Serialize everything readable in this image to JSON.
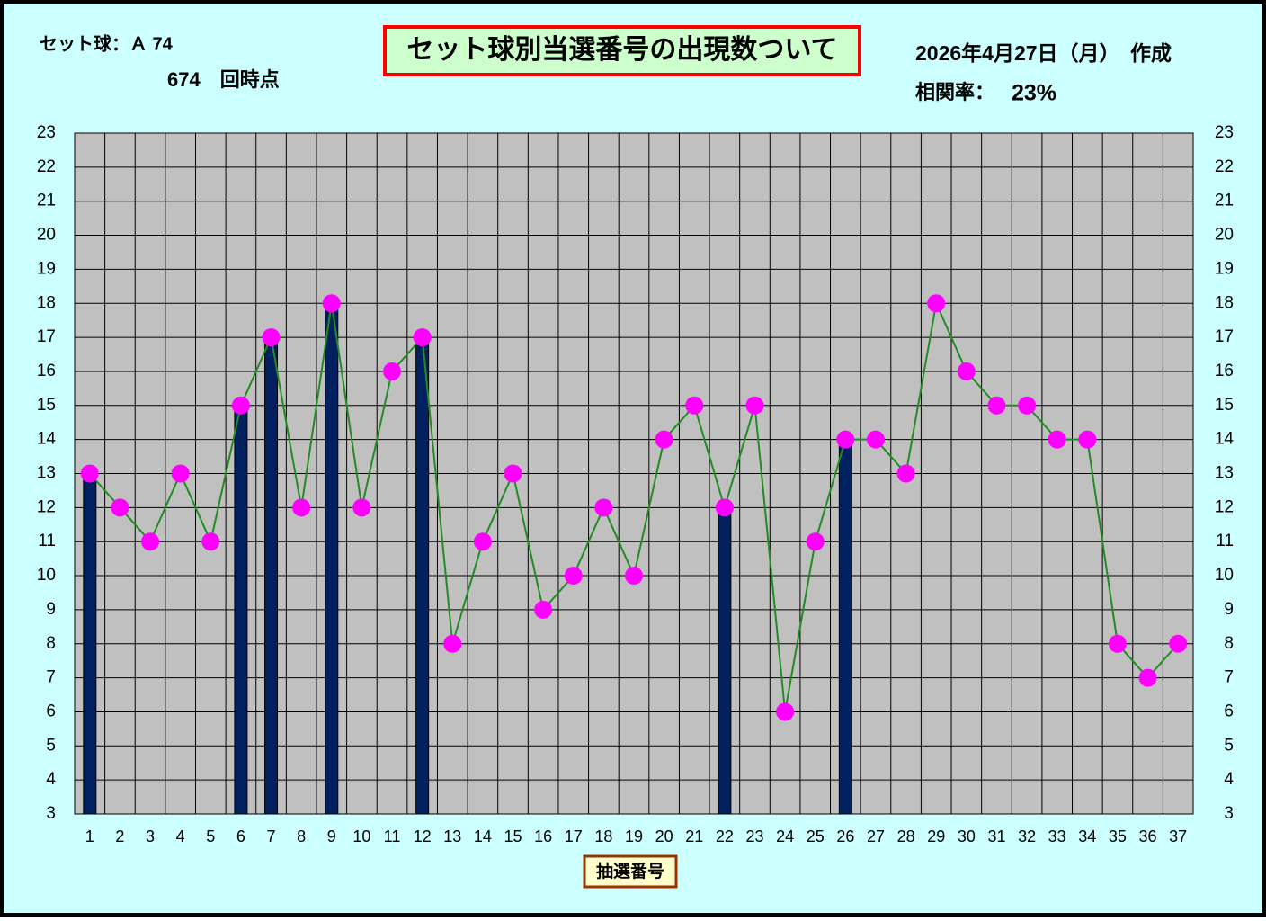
{
  "chart_data": {
    "type": "bar_line",
    "title": "セット球別当選番号の出現数ついて",
    "set_ball": "セット球：Ａ 74",
    "round": "674　回時点",
    "date": "2026年4月27日（月）　作成",
    "correlation_label": "相関率：",
    "correlation": "23%",
    "x_label": "抽選番号",
    "categories": [
      1,
      2,
      3,
      4,
      5,
      6,
      7,
      8,
      9,
      10,
      11,
      12,
      13,
      14,
      15,
      16,
      17,
      18,
      19,
      20,
      21,
      22,
      23,
      24,
      25,
      26,
      27,
      28,
      29,
      30,
      31,
      32,
      33,
      34,
      35,
      36,
      37
    ],
    "series": [
      {
        "type": "bar",
        "color": "#002060",
        "values": [
          13,
          null,
          null,
          null,
          null,
          15,
          17,
          null,
          18,
          null,
          null,
          17,
          null,
          null,
          null,
          null,
          null,
          null,
          null,
          null,
          null,
          12,
          null,
          null,
          null,
          14,
          null,
          null,
          null,
          null,
          null,
          null,
          null,
          null,
          null,
          null,
          null
        ]
      },
      {
        "type": "line",
        "color": "#228b22",
        "marker_color": "#ff00ff",
        "values": [
          13,
          12,
          11,
          13,
          11,
          15,
          17,
          12,
          18,
          12,
          16,
          17,
          8,
          11,
          13,
          9,
          10,
          12,
          10,
          14,
          15,
          12,
          15,
          6,
          11,
          14,
          14,
          13,
          18,
          16,
          15,
          15,
          14,
          14,
          8,
          7,
          8
        ]
      }
    ],
    "ylim": [
      3,
      23
    ],
    "yticks": [
      3,
      4,
      5,
      6,
      7,
      8,
      9,
      10,
      11,
      12,
      13,
      14,
      15,
      16,
      17,
      18,
      19,
      20,
      21,
      22,
      23
    ],
    "y2lim": [
      3,
      23
    ],
    "y2ticks": [
      3,
      4,
      5,
      6,
      7,
      8,
      9,
      10,
      11,
      12,
      13,
      14,
      15,
      16,
      17,
      18,
      19,
      20,
      21,
      22,
      23
    ],
    "grid": true
  }
}
